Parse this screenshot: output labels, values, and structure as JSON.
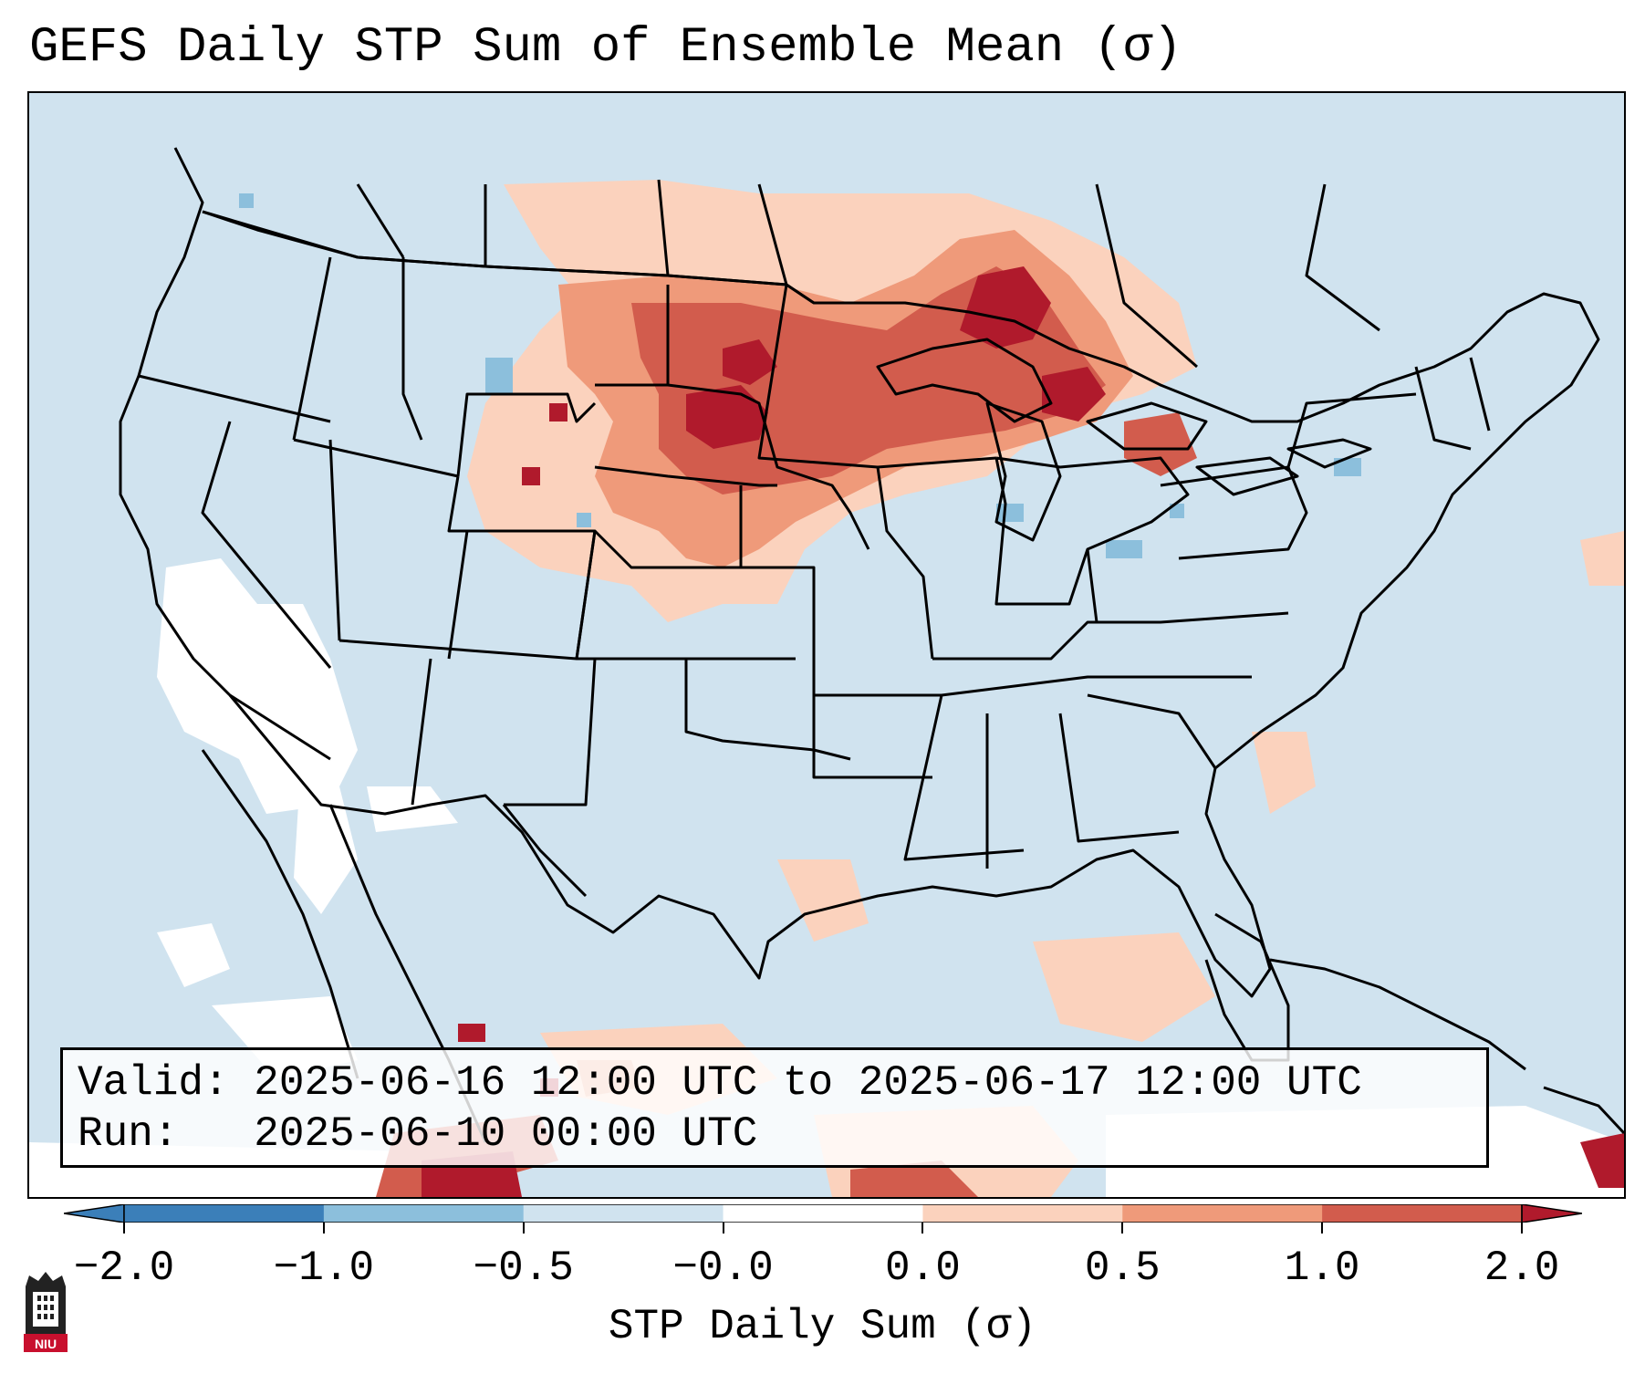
{
  "title": "GEFS Daily STP Sum of Ensemble Mean (σ)",
  "info": {
    "valid_line": "Valid: 2025-06-16 12:00 UTC to 2025-06-17 12:00 UTC",
    "run_line": "Run:   2025-06-10 00:00 UTC"
  },
  "colorbar": {
    "label": "STP Daily Sum (σ)",
    "ticks": [
      "−2.0",
      "−1.0",
      "−0.5",
      "−0.0",
      "0.0",
      "0.5",
      "1.0",
      "2.0"
    ],
    "colors": [
      "#3b7fb9",
      "#8cbfdc",
      "#d0e3ef",
      "#ffffff",
      "#fbd2bd",
      "#ef9a7a",
      "#d25c4d",
      "#b01a2c"
    ],
    "extend": "both"
  },
  "map": {
    "region": "Contiguous United States",
    "ocean_color": "#d0e3ef",
    "border_color": "#000000"
  },
  "logo": {
    "name": "NIU"
  }
}
